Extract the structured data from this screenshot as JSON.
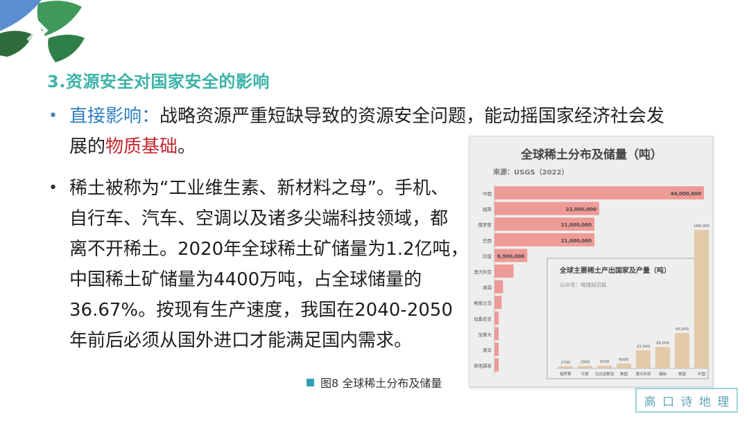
{
  "slide": {
    "title": "3.资源安全对国家安全的影响",
    "bullet1": {
      "lead": "直接影响：",
      "text_a": "战略资源严重短缺导致的资源安全问题，能动摇国家经济社会发",
      "text_b": "展的",
      "highlight": "物质基础",
      "text_c": "。"
    },
    "bullet2": {
      "lines": [
        "稀土被称为“工业维生素、新材料之母”。手机、",
        "自行车、汽车、空调以及诸多尖端科技领域，都",
        "离不开稀土。2020年全球稀土矿储量为1.2亿吨，",
        "中国稀土矿储量为4400万吨，占全球储量的",
        "36.67%。按现有生产速度，我国在2040-2050",
        "年前后必须从国外进口才能满足国内需求。"
      ]
    },
    "caption": "图8 全球稀土分布及储量",
    "stamp_chars": [
      "高",
      "口",
      "诗",
      "地",
      "理"
    ]
  },
  "chart_data": [
    {
      "type": "bar",
      "orientation": "horizontal",
      "title": "全球稀土分布及储量（吨）",
      "subtitle": "来源：USGS（2022）",
      "categories": [
        "中国",
        "越南",
        "俄罗斯",
        "巴西",
        "印度",
        "澳大利亚",
        "美国",
        "格陵兰岛",
        "坦桑尼亚",
        "加拿大",
        "南非",
        "其他国家"
      ],
      "values": [
        44000000,
        22000000,
        21000000,
        21000000,
        6900000,
        4000000,
        1800000,
        1500000,
        890000,
        830000,
        790000,
        280000
      ],
      "data_labels": [
        "44,000,000",
        "22,000,000",
        "21,000,000",
        "21,000,000",
        "6,900,000",
        "",
        "",
        "",
        "",
        "",
        "",
        ""
      ],
      "bar_color": "#ee9a96"
    },
    {
      "type": "bar",
      "orientation": "vertical",
      "title": "全球主要稀土产出国家及产量（吨）",
      "subtitle": "公众号：地球知识局",
      "categories": [
        "俄罗斯",
        "印度",
        "马达加斯加",
        "美国",
        "澳大利亚",
        "缅甸",
        "美国",
        "中国"
      ],
      "values": [
        2700,
        2900,
        3200,
        6000,
        22000,
        26000,
        43000,
        168000
      ],
      "data_labels": [
        "2700",
        "2900",
        "3200",
        "6000",
        "22,000",
        "26,000",
        "43,000",
        "168,000"
      ],
      "bar_color": "#e3caa8"
    }
  ]
}
